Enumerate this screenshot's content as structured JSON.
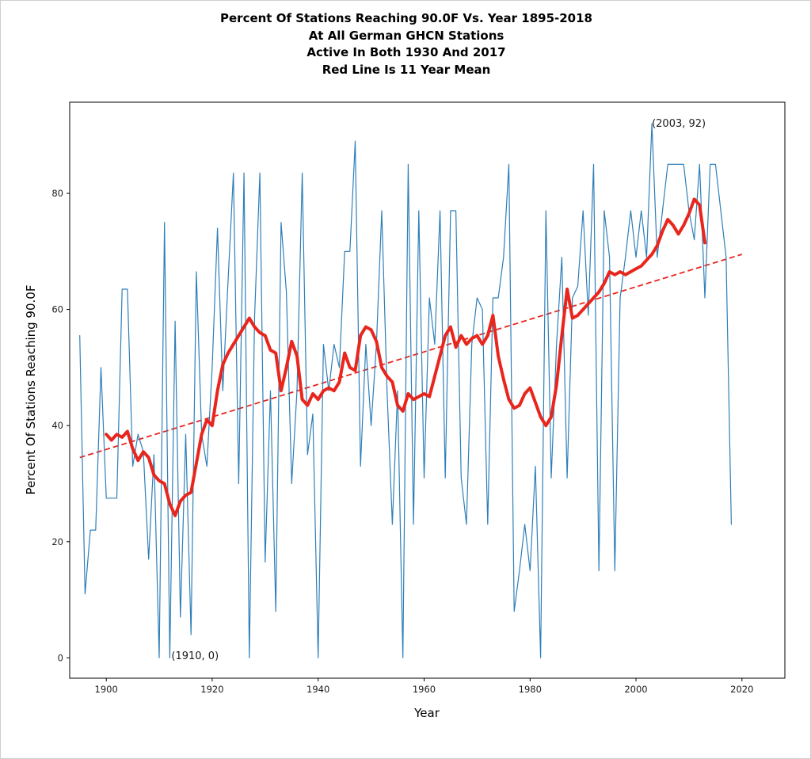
{
  "figure": {
    "title_lines": [
      "Percent Of Stations Reaching 90.0F Vs. Year 1895-2018",
      "At All German GHCN Stations",
      "Active In Both 1930 And 2017",
      "Red Line Is 11 Year Mean"
    ],
    "xlabel": "Year",
    "ylabel": "Percent Of Stations Reaching 90.0F"
  },
  "chart_data": {
    "type": "line",
    "title": "Percent Of Stations Reaching 90.0F Vs. Year 1895-2018 At All German GHCN Stations Active In Both 1930 And 2017 — Red Line Is 11 Year Mean",
    "xlabel": "Year",
    "ylabel": "Percent Of Stations Reaching 90.0F",
    "xlim": [
      1893.1,
      2028.1
    ],
    "ylim": [
      -3.5,
      95.7
    ],
    "x_ticks": [
      1900,
      1920,
      1940,
      1960,
      1980,
      2000,
      2020
    ],
    "y_ticks": [
      0,
      20,
      40,
      60,
      80
    ],
    "grid": false,
    "legend": "none",
    "colors": {
      "annual": "#2e7fb8",
      "mean": "#e8261d",
      "trend": "#e8261d",
      "spine": "#000000",
      "tick_label": "#1c1c1c",
      "annotation": "#1a1a1a"
    },
    "series": [
      {
        "name": "Annual percent of stations reaching 90.0F",
        "start_year": 1895,
        "values": [
          55.5,
          11,
          22,
          22,
          50,
          27.5,
          27.5,
          27.5,
          63.5,
          63.5,
          33,
          38.5,
          35.5,
          17,
          35,
          0,
          75,
          0,
          58,
          7,
          38.5,
          4,
          66.5,
          38.5,
          33,
          50,
          74,
          46,
          65,
          83.5,
          30,
          83.5,
          0,
          58.5,
          83.5,
          16.5,
          46,
          8,
          75,
          63,
          30,
          46,
          83.5,
          35,
          42,
          0,
          54,
          46,
          54,
          50,
          70,
          70,
          89,
          33,
          54,
          40,
          54,
          77,
          46,
          23,
          46,
          0,
          85,
          23,
          77,
          31,
          62,
          54,
          77,
          31,
          77,
          77,
          31,
          23,
          54,
          62,
          60,
          23,
          62,
          62,
          69,
          85,
          8,
          15,
          23,
          15,
          33,
          0,
          77,
          31,
          54,
          69,
          31,
          62,
          64,
          77,
          59,
          85,
          15,
          77,
          69,
          15,
          62,
          69,
          77,
          69,
          77,
          69,
          92,
          69,
          77,
          85,
          85,
          85,
          85,
          77,
          72,
          85,
          62,
          85,
          85,
          77,
          69,
          23
        ]
      },
      {
        "name": "11 year mean",
        "start_year": 1900,
        "values": [
          38.5,
          37.5,
          38.5,
          38,
          39,
          36,
          34,
          35.5,
          34.5,
          31.5,
          30.5,
          30,
          26.5,
          24.5,
          27,
          28,
          28.5,
          33.5,
          38.5,
          41,
          40,
          46,
          50.5,
          52.5,
          54,
          55.5,
          57,
          58.5,
          57,
          56,
          55.5,
          53,
          52.5,
          46,
          50,
          54.5,
          52,
          44.5,
          43.5,
          45.5,
          44.5,
          46,
          46.5,
          46,
          47.5,
          52.5,
          50,
          49.5,
          55.5,
          57,
          56.5,
          54.5,
          50,
          48.5,
          47.5,
          43.5,
          42.5,
          45.5,
          44.5,
          45,
          45.5,
          45,
          48.5,
          52,
          55.5,
          57,
          53.5,
          55.5,
          54,
          55,
          55.5,
          54,
          55.5,
          59,
          52,
          48,
          44.5,
          43,
          43.5,
          45.5,
          46.5,
          44,
          41.5,
          40,
          41.5,
          47,
          55.5,
          63.5,
          58.5,
          59,
          60,
          61,
          62,
          63,
          64.5,
          66.5,
          66,
          66.5,
          66,
          66.5,
          67,
          67.5,
          68.5,
          69.5,
          71,
          73.5,
          75.5,
          74.5,
          73,
          74.5,
          76.5,
          79,
          78,
          71.5
        ]
      }
    ],
    "trend": {
      "name": "Linear trend",
      "style": "dashed",
      "x": [
        1895,
        2020
      ],
      "y": [
        34.5,
        69.5
      ]
    },
    "annotations": [
      {
        "text": "(2003, 92)",
        "x": 2003,
        "y": 92
      },
      {
        "text": "(1910, 0)",
        "x": 1912.3,
        "y": 0.3
      }
    ]
  }
}
